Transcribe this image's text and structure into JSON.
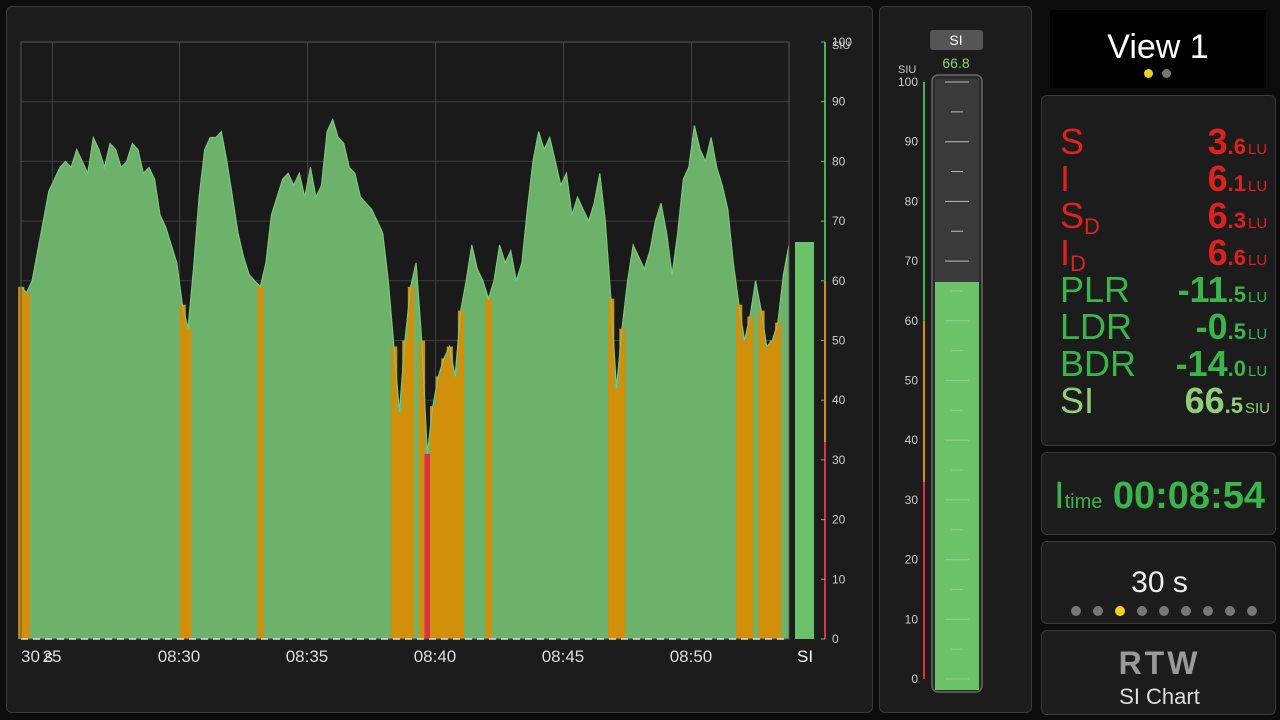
{
  "chart": {
    "x_tick_labels": [
      "30 s",
      "25",
      "08:30",
      "08:35",
      "08:40",
      "08:45",
      "08:50"
    ],
    "y_unit": "SIU",
    "y_ticks": [
      "100",
      "90",
      "80",
      "70",
      "60",
      "50",
      "40",
      "30",
      "20",
      "10",
      "0"
    ],
    "bar_label": "SI",
    "current_value": 66.5
  },
  "chart_data": {
    "type": "area",
    "ylabel": "SIU",
    "ylim": [
      0,
      100
    ],
    "x": [
      0,
      1,
      2,
      3,
      4,
      5,
      6,
      7,
      8,
      9,
      10,
      11,
      12,
      13,
      14,
      15,
      16,
      17,
      18,
      19,
      20,
      21,
      22,
      23,
      24,
      25,
      26,
      27,
      28,
      29,
      30,
      31,
      32,
      33,
      34,
      35,
      36,
      37,
      38,
      39,
      40,
      41,
      42,
      43,
      44,
      45,
      46,
      47,
      48,
      49,
      50,
      51,
      52,
      53,
      54,
      55,
      56,
      57,
      58,
      59,
      60,
      61,
      62,
      63,
      64,
      65,
      66,
      67,
      68,
      69,
      70,
      71,
      72,
      73,
      74,
      75,
      76,
      77,
      78,
      79,
      80,
      81,
      82,
      83,
      84,
      85,
      86,
      87,
      88,
      89,
      90,
      91,
      92,
      93,
      94,
      95,
      96,
      97,
      98,
      99,
      100,
      101,
      102,
      103,
      104,
      105,
      106,
      107,
      108,
      109,
      110,
      111,
      112,
      113,
      114,
      115,
      116,
      117,
      118,
      119,
      120,
      121,
      122,
      123,
      124,
      125,
      126,
      127,
      128,
      129,
      130,
      131,
      132,
      133,
      134,
      135,
      136,
      137,
      138
    ],
    "series": [
      {
        "name": "SI",
        "values": [
          59,
          58,
          60,
          65,
          70,
          75,
          77,
          79,
          80,
          79,
          82,
          80,
          78,
          84,
          82,
          79,
          83,
          82,
          79,
          80,
          83,
          82,
          78,
          79,
          77,
          71,
          69,
          66,
          63,
          56,
          52,
          62,
          74,
          82,
          84,
          84,
          85,
          80,
          74,
          68,
          64,
          61,
          60,
          59,
          63,
          71,
          74,
          77,
          78,
          76,
          78,
          74,
          79,
          74,
          76,
          85,
          87,
          84,
          83,
          79,
          78,
          74,
          73,
          72,
          70,
          68,
          60,
          49,
          38,
          50,
          59,
          63,
          50,
          31,
          39,
          44,
          47,
          49,
          44,
          55,
          60,
          66,
          62,
          60,
          57,
          60,
          66,
          63,
          65,
          60,
          63,
          72,
          80,
          85,
          82,
          84,
          80,
          76,
          78,
          71,
          74,
          72,
          70,
          73,
          78,
          70,
          57,
          42,
          52,
          60,
          66,
          64,
          62,
          65,
          70,
          73,
          68,
          61,
          68,
          77,
          79,
          86,
          82,
          80,
          84,
          79,
          76,
          72,
          63,
          56,
          50,
          54,
          60,
          55,
          49,
          50,
          53,
          61,
          66
        ]
      }
    ],
    "bars": [
      {
        "name": "SI",
        "value": 66.5
      }
    ]
  },
  "meter": {
    "header": "SI",
    "peak": "66.8",
    "unit": "SIU",
    "scale": [
      "100",
      "90",
      "80",
      "70",
      "60",
      "50",
      "40",
      "30",
      "20",
      "10",
      "0"
    ],
    "value": 66.5
  },
  "view": {
    "title": "View 1",
    "pages": 2,
    "active": 0
  },
  "values": [
    {
      "label": "S",
      "sub": "",
      "int": "3",
      "frac": ".6",
      "unit": "LU",
      "color": "#e0201e"
    },
    {
      "label": "I",
      "sub": "",
      "int": "6",
      "frac": ".1",
      "unit": "LU",
      "color": "#e0201e"
    },
    {
      "label": "S",
      "sub": "D",
      "int": "6",
      "frac": ".3",
      "unit": "LU",
      "color": "#e0201e"
    },
    {
      "label": "I",
      "sub": "D",
      "int": "6",
      "frac": ".6",
      "unit": "LU",
      "color": "#e0201e"
    },
    {
      "label": "PLR",
      "sub": "",
      "int": "-11",
      "frac": ".5",
      "unit": "LU",
      "color": "#39b54a"
    },
    {
      "label": "LDR",
      "sub": "",
      "int": "-0",
      "frac": ".5",
      "unit": "LU",
      "color": "#39b54a"
    },
    {
      "label": "BDR",
      "sub": "",
      "int": "-14",
      "frac": ".0",
      "unit": "LU",
      "color": "#39b54a"
    },
    {
      "label": "SI",
      "sub": "",
      "int": "66",
      "frac": ".5",
      "unit": "SIU",
      "color": "#8fcf7a"
    }
  ],
  "itime": {
    "label": "I",
    "sub": "time",
    "value": "00:08:54"
  },
  "range": {
    "value": "30 s",
    "steps": 9,
    "active": 2
  },
  "logo": {
    "brand": "RTW",
    "product": "SI Chart"
  },
  "colors": {
    "green": "#6db26b",
    "amber": "#d18f0a",
    "red": "#d8334a",
    "background": "#1c1c1c"
  }
}
